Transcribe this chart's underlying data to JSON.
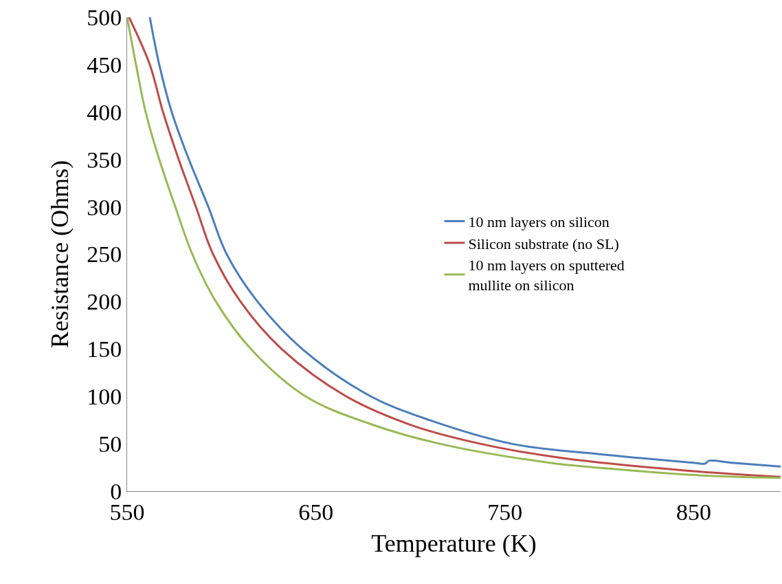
{
  "chart_data": {
    "type": "line",
    "xlabel": "Temperature (K)",
    "ylabel": "Resistance (Ohms)",
    "xlim": [
      550,
      896
    ],
    "xticks": [
      550,
      650,
      750,
      850
    ],
    "ylim": [
      0,
      500
    ],
    "yticks": [
      0,
      50,
      100,
      150,
      200,
      250,
      300,
      350,
      400,
      450,
      500
    ],
    "legend": "right",
    "line_style": "solid",
    "marker": "none",
    "series": [
      {
        "name": "10 nm layers on silicon",
        "color": "#4a7ebb",
        "x": [
          562,
          567,
          573.6,
          582.7,
          593,
          602.7,
          619,
          642.7,
          679,
          710,
          753.6,
          800,
          850,
          856,
          858,
          870,
          896
        ],
        "values": [
          500,
          450,
          400,
          350,
          300,
          250,
          200,
          150,
          100,
          75,
          50,
          39,
          30,
          29,
          32,
          30,
          26
        ]
      },
      {
        "name": "Silicon substrate (no SL)",
        "color": "#be4b48",
        "x": [
          551,
          562,
          569,
          577.3,
          586.4,
          595.5,
          610,
          631.8,
          666,
          700,
          737,
          780,
          850,
          896
        ],
        "values": [
          500,
          450,
          400,
          350,
          300,
          250,
          200,
          150,
          100,
          70,
          50,
          35,
          21,
          15
        ]
      },
      {
        "name": "10 nm layers on sputtered mullite on silicon",
        "color": "#98b954",
        "x": [
          550,
          554.7,
          559.8,
          567,
          575.5,
          584.5,
          597,
          615.5,
          644.5,
          680,
          715.5,
          773.6,
          810,
          850,
          896
        ],
        "values": [
          500,
          450,
          400,
          350,
          300,
          250,
          200,
          150,
          100,
          70,
          50,
          30,
          23,
          17,
          14
        ]
      }
    ]
  }
}
